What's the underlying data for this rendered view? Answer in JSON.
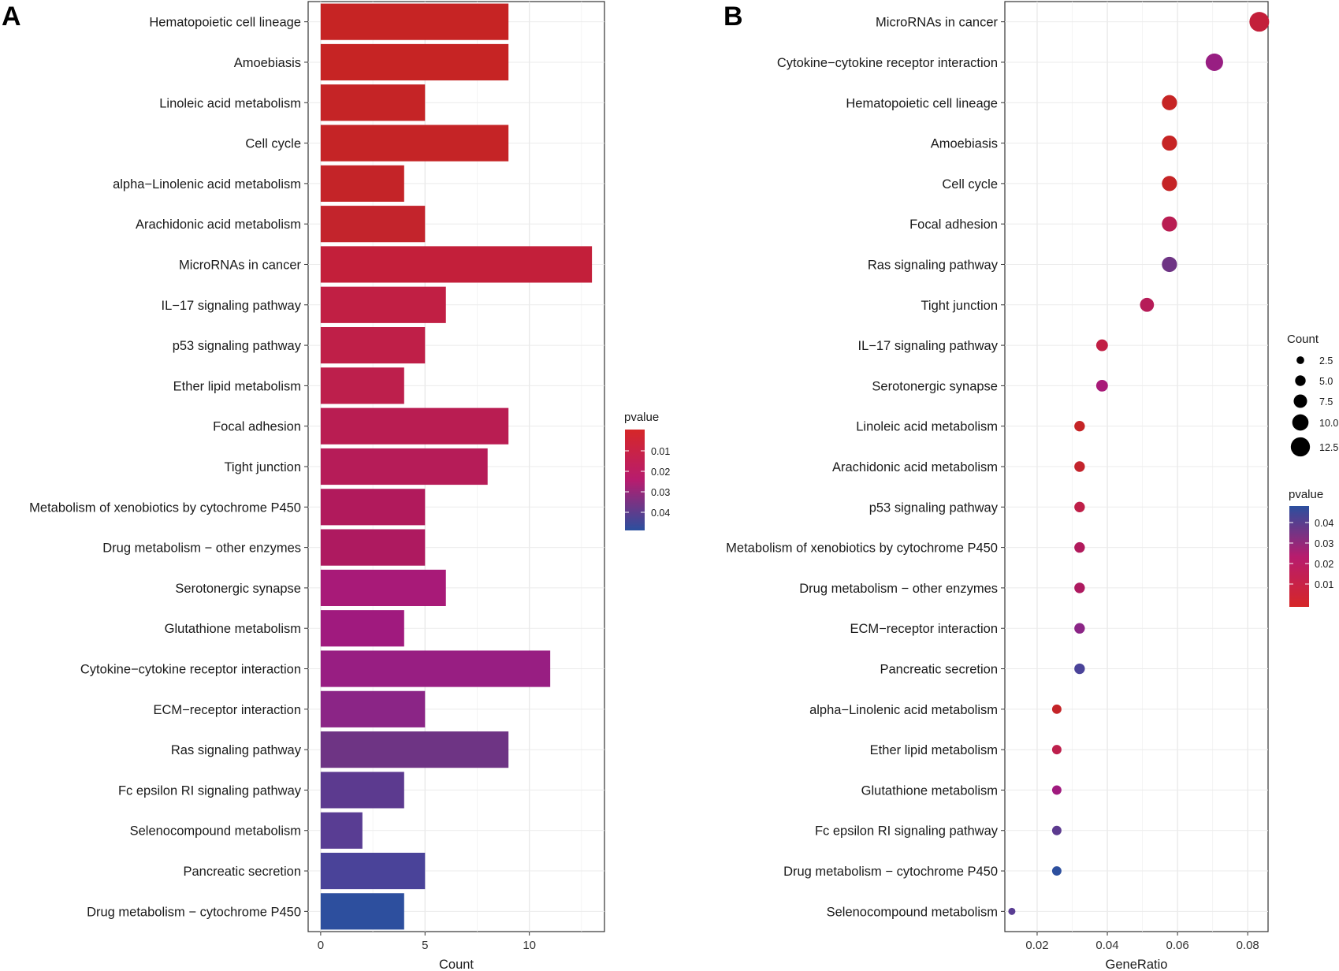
{
  "chart_data": [
    {
      "panel": "A",
      "type": "bar",
      "orientation": "horizontal",
      "xlabel": "Count",
      "ylabel": "",
      "xlim": [
        -0.6,
        13.6
      ],
      "xticks": [
        0,
        5,
        10
      ],
      "grid": true,
      "legend_position": "right",
      "color_legend": {
        "title": "pvalue",
        "ticks": [
          "0.01",
          "0.02",
          "0.03",
          "0.04"
        ],
        "low_color": "#d62728",
        "high_color": "#2b4f9e"
      },
      "categories": [
        "Hematopoietic cell lineage",
        "Amoebiasis",
        "Linoleic acid metabolism",
        "Cell cycle",
        "alpha−Linolenic acid metabolism",
        "Arachidonic acid metabolism",
        "MicroRNAs in cancer",
        "IL−17 signaling pathway",
        "p53 signaling pathway",
        "Ether lipid metabolism",
        "Focal adhesion",
        "Tight junction",
        "Metabolism of xenobiotics by cytochrome P450",
        "Drug metabolism − other enzymes",
        "Serotonergic synapse",
        "Glutathione metabolism",
        "Cytokine−cytokine receptor interaction",
        "ECM−receptor interaction",
        "Ras signaling pathway",
        "Fc epsilon RI signaling pathway",
        "Selenocompound metabolism",
        "Pancreatic secretion",
        "Drug metabolism − cytochrome P450"
      ],
      "values": [
        9,
        9,
        5,
        9,
        4,
        5,
        13,
        6,
        5,
        4,
        9,
        8,
        5,
        5,
        6,
        4,
        11,
        5,
        9,
        4,
        2,
        5,
        4
      ],
      "colors": [
        "#c62424",
        "#c62424",
        "#c52426",
        "#c52426",
        "#c42428",
        "#c3242c",
        "#c31f3a",
        "#c11f44",
        "#bf1f48",
        "#bd1f4c",
        "#b91d52",
        "#b61c58",
        "#b11a5c",
        "#ae1a60",
        "#a81a78",
        "#a01a7e",
        "#981e82",
        "#8b2586",
        "#6e3484",
        "#5c3a8f",
        "#593d93",
        "#4a4399",
        "#2d4f9e"
      ]
    },
    {
      "panel": "B",
      "type": "scatter",
      "xlabel": "GeneRatio",
      "ylabel": "",
      "xlim": [
        0.0108,
        0.0858
      ],
      "xticks": [
        "0.02",
        "0.04",
        "0.06",
        "0.08"
      ],
      "xtick_values": [
        0.02,
        0.04,
        0.06,
        0.08
      ],
      "grid": true,
      "legend_position": "right",
      "size_legend": {
        "title": "Count",
        "ticks": [
          "2.5",
          "5.0",
          "7.5",
          "10.0",
          "12.5"
        ]
      },
      "color_legend": {
        "title": "pvalue",
        "ticks": [
          "0.04",
          "0.03",
          "0.02",
          "0.01"
        ],
        "low_color": "#d62728",
        "high_color": "#2b4f9e"
      },
      "categories": [
        "MicroRNAs in cancer",
        "Cytokine−cytokine receptor interaction",
        "Hematopoietic cell lineage",
        "Amoebiasis",
        "Cell cycle",
        "Focal adhesion",
        "Ras signaling pathway",
        "Tight junction",
        "IL−17 signaling pathway",
        "Serotonergic synapse",
        "Linoleic acid metabolism",
        "Arachidonic acid metabolism",
        "p53 signaling pathway",
        "Metabolism of xenobiotics by cytochrome P450",
        "Drug metabolism − other enzymes",
        "ECM−receptor interaction",
        "Pancreatic secretion",
        "alpha−Linolenic acid metabolism",
        "Ether lipid metabolism",
        "Glutathione metabolism",
        "Fc epsilon RI signaling pathway",
        "Drug metabolism − cytochrome P450",
        "Selenocompound metabolism"
      ],
      "gene_ratio": [
        0.0833,
        0.0705,
        0.0577,
        0.0577,
        0.0577,
        0.0577,
        0.0577,
        0.0513,
        0.0385,
        0.0385,
        0.0321,
        0.0321,
        0.0321,
        0.0321,
        0.0321,
        0.0321,
        0.0321,
        0.0256,
        0.0256,
        0.0256,
        0.0256,
        0.0256,
        0.0128
      ],
      "counts": [
        13,
        11,
        9,
        9,
        9,
        9,
        9,
        8,
        6,
        6,
        5,
        5,
        5,
        5,
        5,
        5,
        5,
        4,
        4,
        4,
        4,
        4,
        2
      ],
      "colors": [
        "#c31f3a",
        "#981e82",
        "#c62424",
        "#c62424",
        "#c52426",
        "#b91d52",
        "#6e3484",
        "#b61c58",
        "#c11f44",
        "#a81a78",
        "#c52426",
        "#c3242c",
        "#bf1f48",
        "#b11a5c",
        "#ae1a60",
        "#8b2586",
        "#4a4399",
        "#c42428",
        "#bd1f4c",
        "#a01a7e",
        "#5c3a8f",
        "#2d4f9e",
        "#593d93"
      ]
    }
  ]
}
